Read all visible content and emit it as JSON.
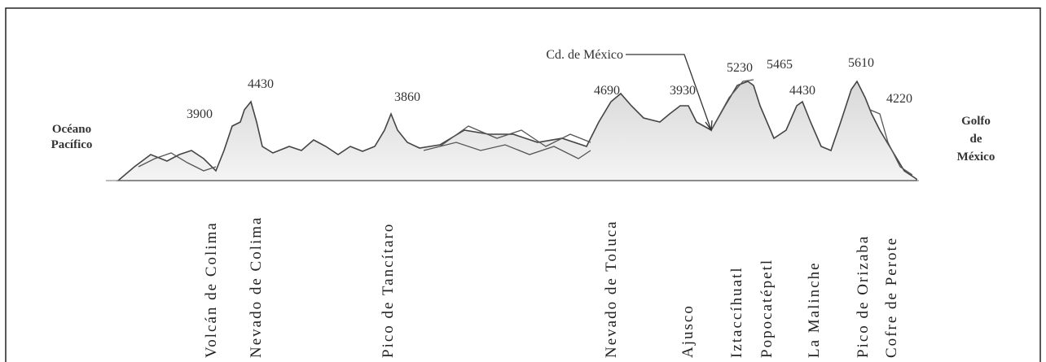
{
  "left_label": [
    "Océano",
    "Pacífico"
  ],
  "right_label": [
    "Golfo",
    "de",
    "México"
  ],
  "city_label": "Cd. de México",
  "peaks": [
    {
      "name": "Volcán de Colima",
      "elevation": 3900
    },
    {
      "name": "Nevado de Colima",
      "elevation": 4430
    },
    {
      "name": "Pico de Tancítaro",
      "elevation": 3860
    },
    {
      "name": "Nevado de Toluca",
      "elevation": 4690
    },
    {
      "name": "Ajusco",
      "elevation": 3930
    },
    {
      "name": "Iztaccíhuatl",
      "elevation": 5230
    },
    {
      "name": "Popocatépetl",
      "elevation": 5465
    },
    {
      "name": "La Malinche",
      "elevation": 4430
    },
    {
      "name": "Pico de Orizaba",
      "elevation": 5610
    },
    {
      "name": "Cofre de Perote",
      "elevation": 4220
    }
  ]
}
